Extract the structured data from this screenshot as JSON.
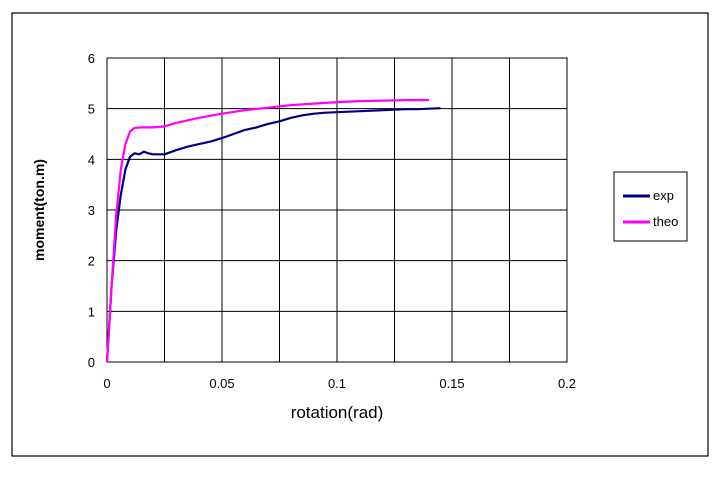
{
  "chart_data": {
    "type": "line",
    "title": "",
    "xlabel": "rotation(rad)",
    "ylabel": "moment(ton.m)",
    "xlim": [
      0,
      0.2
    ],
    "ylim": [
      0,
      6
    ],
    "xticks": [
      0,
      0.05,
      0.1,
      0.15,
      0.2
    ],
    "yticks": [
      0,
      1,
      2,
      3,
      4,
      5,
      6
    ],
    "xtick_labels": [
      "0",
      "0.05",
      "0.1",
      "0.15",
      "0.2"
    ],
    "ytick_labels": [
      "0",
      "1",
      "2",
      "3",
      "4",
      "5",
      "6"
    ],
    "grid": true,
    "legend_position": "right",
    "series": [
      {
        "name": "exp",
        "color": "#000080",
        "x": [
          0,
          0.002,
          0.004,
          0.006,
          0.008,
          0.01,
          0.012,
          0.014,
          0.016,
          0.018,
          0.02,
          0.025,
          0.03,
          0.035,
          0.04,
          0.045,
          0.05,
          0.055,
          0.06,
          0.065,
          0.07,
          0.075,
          0.08,
          0.085,
          0.09,
          0.095,
          0.1,
          0.105,
          0.11,
          0.115,
          0.12,
          0.125,
          0.13,
          0.135,
          0.14,
          0.145
        ],
        "y": [
          0,
          1.5,
          2.6,
          3.3,
          3.8,
          4.05,
          4.12,
          4.1,
          4.15,
          4.12,
          4.1,
          4.1,
          4.18,
          4.25,
          4.3,
          4.35,
          4.42,
          4.5,
          4.58,
          4.63,
          4.7,
          4.75,
          4.82,
          4.87,
          4.9,
          4.92,
          4.93,
          4.94,
          4.95,
          4.96,
          4.97,
          4.98,
          4.99,
          4.99,
          5.0,
          5.01
        ]
      },
      {
        "name": "theo",
        "color": "#ff00ff",
        "x": [
          0,
          0.002,
          0.004,
          0.006,
          0.008,
          0.01,
          0.012,
          0.015,
          0.02,
          0.025,
          0.03,
          0.04,
          0.05,
          0.06,
          0.07,
          0.08,
          0.09,
          0.1,
          0.11,
          0.12,
          0.13,
          0.14
        ],
        "y": [
          0,
          1.5,
          2.9,
          3.8,
          4.3,
          4.55,
          4.62,
          4.63,
          4.63,
          4.65,
          4.72,
          4.82,
          4.9,
          4.97,
          5.02,
          5.07,
          5.1,
          5.13,
          5.15,
          5.16,
          5.17,
          5.17
        ]
      }
    ]
  }
}
